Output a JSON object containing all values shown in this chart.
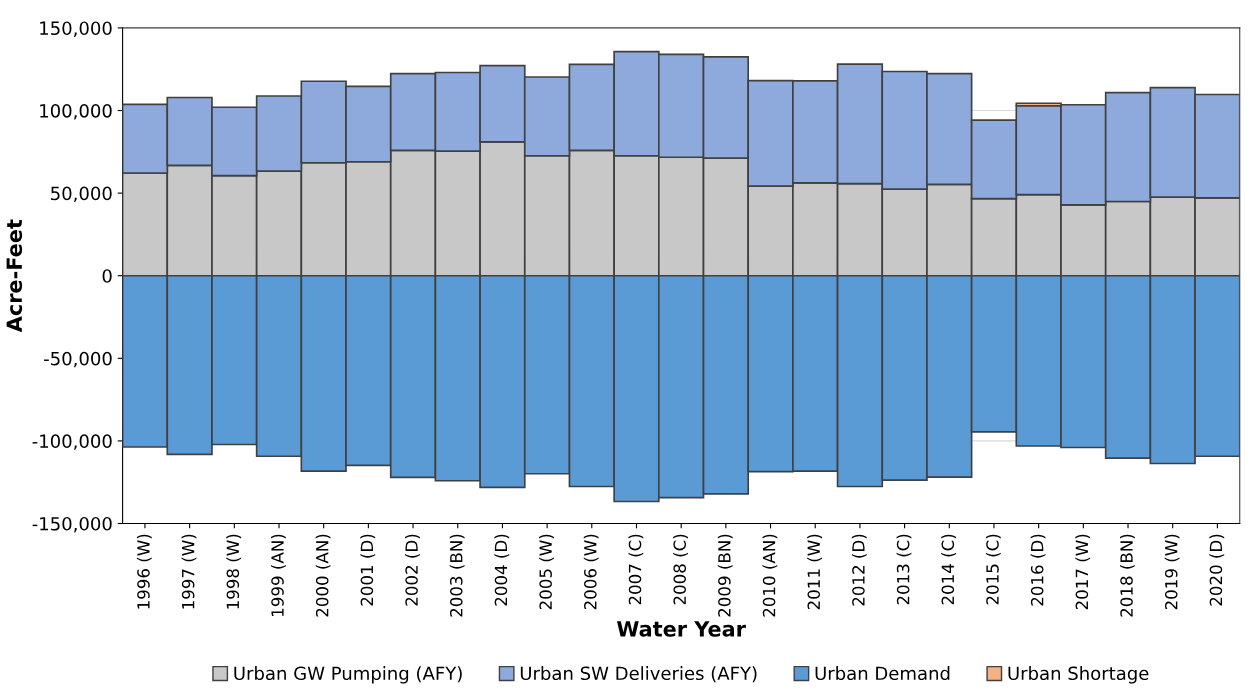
{
  "chart_data": {
    "type": "bar",
    "stacked": true,
    "xlabel": "Water Year",
    "ylabel": "Acre-Feet",
    "categories": [
      "1996 (W)",
      "1997 (W)",
      "1998 (W)",
      "1999 (AN)",
      "2000 (AN)",
      "2001 (D)",
      "2002 (D)",
      "2003 (BN)",
      "2004 (D)",
      "2005 (W)",
      "2006 (W)",
      "2007 (C)",
      "2008 (C)",
      "2009 (BN)",
      "2010 (AN)",
      "2011 (W)",
      "2012 (D)",
      "2013 (C)",
      "2014 (C)",
      "2015 (C)",
      "2016 (D)",
      "2017 (W)",
      "2018 (BN)",
      "2019 (W)",
      "2020 (D)"
    ],
    "series": [
      {
        "name": "Urban GW Pumping (AFY)",
        "color": "#c8c8c8",
        "values": [
          62200,
          66800,
          60600,
          63300,
          68400,
          69000,
          75900,
          75400,
          81000,
          72600,
          75900,
          72600,
          71700,
          71200,
          54200,
          56200,
          55700,
          52400,
          55300,
          46700,
          49100,
          42900,
          44900,
          47600,
          47100
        ]
      },
      {
        "name": "Urban SW Deliveries (AFY)",
        "color": "#8eaadc",
        "values": [
          41500,
          41100,
          41400,
          45500,
          49300,
          45600,
          46400,
          47600,
          46200,
          47700,
          52000,
          63000,
          62300,
          61300,
          63900,
          61700,
          72400,
          71200,
          67000,
          47500,
          53800,
          60600,
          65900,
          66300,
          62600
        ]
      },
      {
        "name": "Urban Demand",
        "color": "#5b9bd5",
        "values": [
          -103700,
          -108200,
          -102200,
          -109300,
          -118300,
          -114800,
          -122100,
          -124100,
          -128100,
          -119900,
          -127600,
          -136700,
          -134300,
          -132100,
          -118600,
          -118300,
          -127600,
          -123700,
          -121900,
          -94500,
          -103100,
          -104000,
          -110400,
          -113700,
          -109300
        ]
      },
      {
        "name": "Urban Shortage",
        "color": "#f4b183",
        "values": [
          null,
          null,
          null,
          null,
          null,
          null,
          null,
          null,
          null,
          null,
          null,
          null,
          null,
          null,
          null,
          null,
          null,
          null,
          null,
          null,
          1500,
          null,
          null,
          null,
          null
        ]
      }
    ],
    "ylim": [
      -150000,
      150000
    ],
    "yticks": [
      {
        "value": -150000,
        "label": "-150,000"
      },
      {
        "value": -100000,
        "label": "-100,000"
      },
      {
        "value": -50000,
        "label": "-50,000"
      },
      {
        "value": 0,
        "label": "0"
      },
      {
        "value": 50000,
        "label": "50,000"
      },
      {
        "value": 100000,
        "label": "100,000"
      },
      {
        "value": 150000,
        "label": "150,000"
      }
    ],
    "grid": "y",
    "legend": "bottom"
  }
}
